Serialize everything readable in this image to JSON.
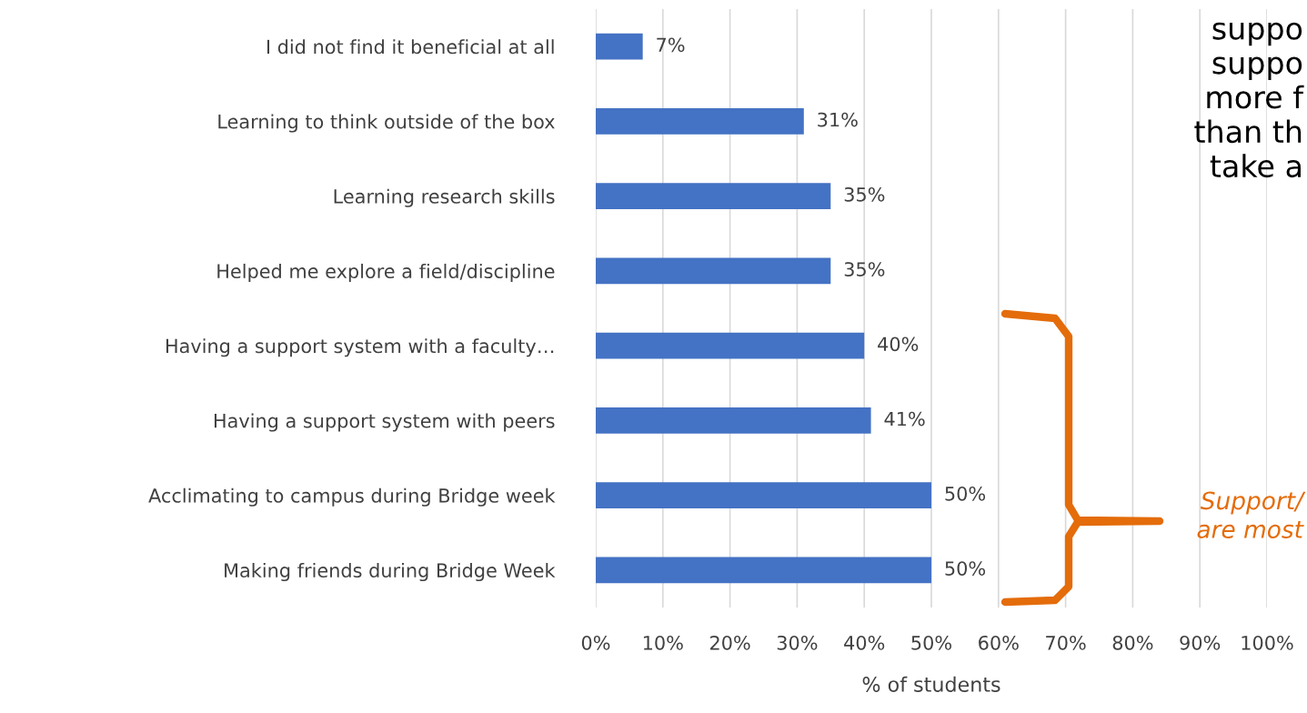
{
  "chart_data": {
    "type": "bar",
    "orientation": "horizontal",
    "xlabel": "% of students",
    "categories": [
      "I did not find it beneficial at all",
      "Learning to think outside of the box",
      "Learning research skills",
      "Helped me explore a field/discipline",
      "Having a support system with a faculty…",
      "Having a support system with peers",
      "Acclimating to campus during Bridge week",
      "Making friends during Bridge Week"
    ],
    "values": [
      7,
      31,
      35,
      35,
      40,
      41,
      50,
      50
    ],
    "value_labels": [
      "7%",
      "31%",
      "35%",
      "35%",
      "40%",
      "41%",
      "50%",
      "50%"
    ],
    "color": "#4472c4",
    "xlim": [
      0,
      100
    ],
    "xticks": [
      {
        "value": 0,
        "label": "0%"
      },
      {
        "value": 10,
        "label": "10%"
      },
      {
        "value": 20,
        "label": "20%"
      },
      {
        "value": 30,
        "label": "30%"
      },
      {
        "value": 40,
        "label": "40%"
      },
      {
        "value": 50,
        "label": "50%"
      },
      {
        "value": 60,
        "label": "60%"
      },
      {
        "value": 70,
        "label": "70%"
      },
      {
        "value": 80,
        "label": "80%"
      },
      {
        "value": 90,
        "label": "90%"
      },
      {
        "value": 100,
        "label": "100%"
      }
    ],
    "grid": "x",
    "legend": false,
    "annotations": [
      "suppo\nsuppo\nmore f\nthan th\ntake a",
      "Support/\nare most"
    ]
  }
}
